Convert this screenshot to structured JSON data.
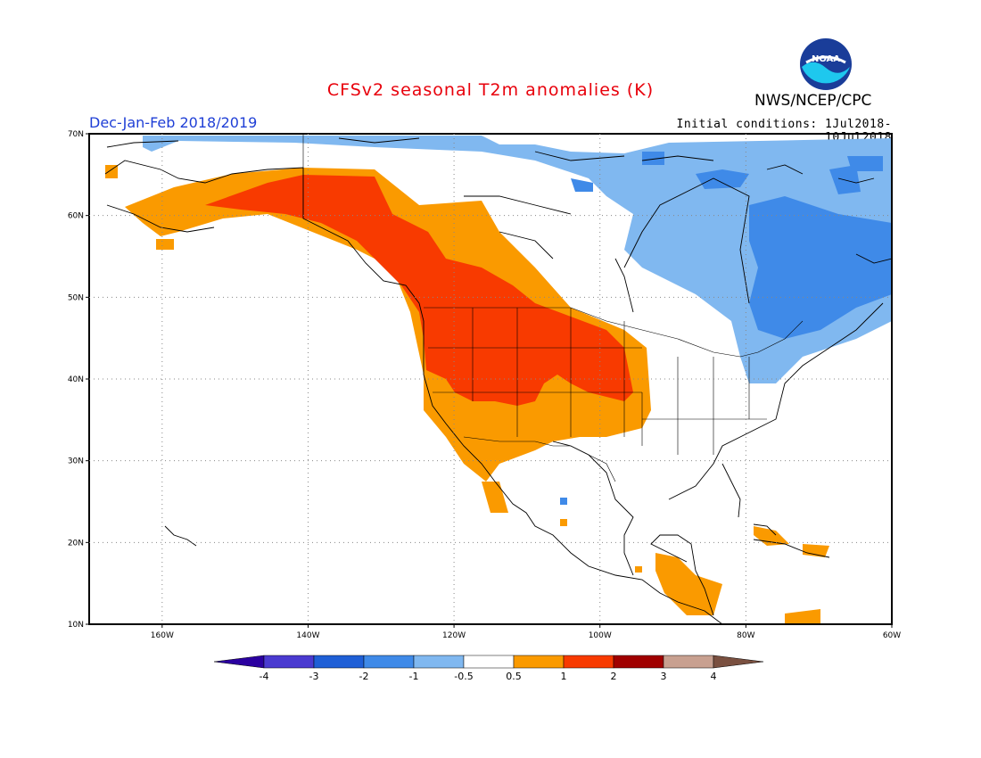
{
  "header": {
    "title": "CFSv2 seasonal T2m anomalies (K)",
    "season": "Dec-Jan-Feb 2018/2019",
    "agency": "NWS/NCEP/CPC",
    "initial_conditions": "Initial conditions: 1Jul2018-10Jul2018",
    "logo_text": "NOAA"
  },
  "map": {
    "lon_range": [
      -170,
      -60
    ],
    "lat_range": [
      10,
      70
    ],
    "lon_ticks": [
      "160W",
      "140W",
      "120W",
      "100W",
      "80W",
      "60W"
    ],
    "lat_ticks": [
      "10N",
      "20N",
      "30N",
      "40N",
      "50N",
      "60N",
      "70N"
    ],
    "gridlines": true,
    "anomaly_regions": [
      {
        "name": "Western US / Canada warm",
        "level": "1 to 2",
        "color": "#f83a00"
      },
      {
        "name": "Western warm fringe",
        "level": "0.5 to 1",
        "color": "#fa9a00"
      },
      {
        "name": "Alaska warm",
        "level": "0.5 to 1",
        "color": "#fa9a00"
      },
      {
        "name": "Central America warm",
        "level": "0.5 to 1",
        "color": "#fa9a00"
      },
      {
        "name": "Eastern Canada cool",
        "level": "-1 to -0.5",
        "color": "#80b8f0"
      },
      {
        "name": "Eastern Canada cool core",
        "level": "-2 to -1",
        "color": "#3f8ae8"
      }
    ]
  },
  "colorbar": {
    "labels": [
      "-4",
      "-3",
      "-2",
      "-1",
      "-0.5",
      "0.5",
      "1",
      "2",
      "3",
      "4"
    ],
    "colors": [
      "#2b00a0",
      "#4a3ad0",
      "#1f5fd6",
      "#3f8ae8",
      "#80b8f0",
      "#ffffff",
      "#fa9a00",
      "#f83a00",
      "#a00000",
      "#c8a090",
      "#7a5040"
    ]
  }
}
